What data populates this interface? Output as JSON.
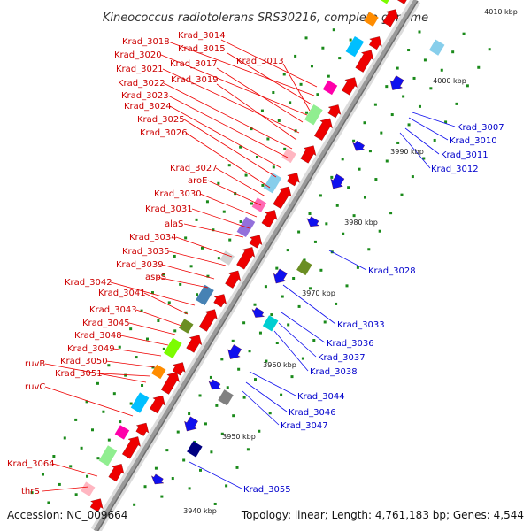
{
  "title": "Kineococcus radiotolerans SRS30216, complete genome",
  "footer": {
    "accession": "Accession: NC_009664",
    "topology": "Topology: linear; Length: 4,761,183 bp; Genes: 4,544"
  },
  "colors": {
    "strand_left_label": "#cc0000",
    "strand_right_label": "#0000cc",
    "ticks": "#1a7a1a",
    "backbone": "#9a9a9a"
  },
  "kbp_markers": [
    "3940 kbp",
    "3950 kbp",
    "3960 kbp",
    "3970 kbp",
    "3980 kbp",
    "3990 kbp",
    "4000 kbp",
    "4010 kbp"
  ],
  "left_labels": [
    "Krad_3014",
    "Krad_3018",
    "Krad_3015",
    "Krad_3020",
    "Krad_3017",
    "Krad_3013",
    "Krad_3021",
    "Krad_3019",
    "Krad_3022",
    "Krad_3023",
    "Krad_3024",
    "Krad_3025",
    "Krad_3026",
    "Krad_3027",
    "aroE",
    "Krad_3030",
    "Krad_3031",
    "alaS",
    "Krad_3034",
    "Krad_3035",
    "Krad_3039",
    "aspS",
    "Krad_3042",
    "Krad_3041",
    "Krad_3043",
    "Krad_3045",
    "Krad_3048",
    "Krad_3049",
    "ruvB",
    "Krad_3050",
    "Krad_3051",
    "ruvC",
    "Krad_3064",
    "thrS"
  ],
  "right_labels": [
    "Krad_3007",
    "Krad_3010",
    "Krad_3011",
    "Krad_3012",
    "Krad_3028",
    "Krad_3033",
    "Krad_3036",
    "Krad_3037",
    "Krad_3038",
    "Krad_3044",
    "Krad_3046",
    "Krad_3047",
    "Krad_3055"
  ]
}
